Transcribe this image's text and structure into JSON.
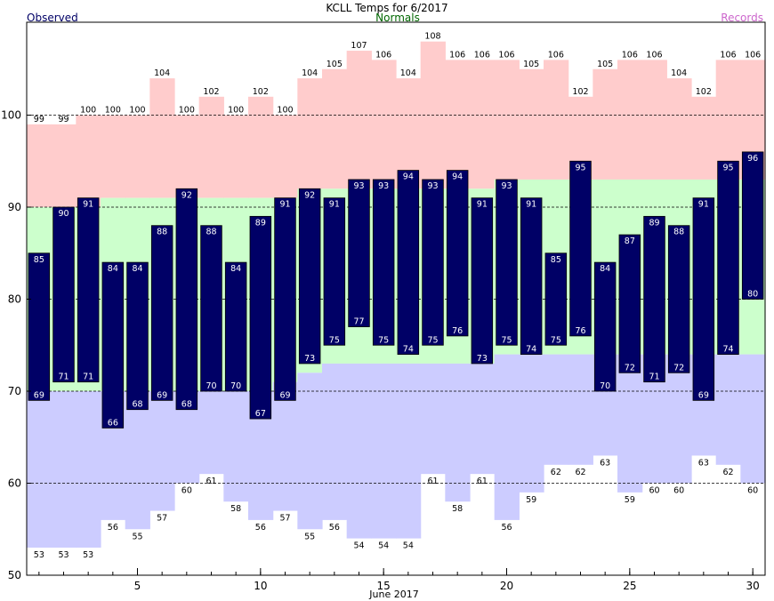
{
  "chart_data": {
    "type": "bar",
    "title": "KCLL Temps for 6/2017",
    "legend": {
      "observed": "Observed",
      "normals": "Normals",
      "records": "Records",
      "placement": "top"
    },
    "xlabel": "June 2017",
    "ylabel": "",
    "xlim": [
      1,
      30
    ],
    "ylim": [
      50,
      110
    ],
    "x_ticks": [
      "5",
      "10",
      "15",
      "20",
      "25",
      "30"
    ],
    "x_tick_values": [
      5,
      10,
      15,
      20,
      25,
      30
    ],
    "y_ticks": [
      "50",
      "60",
      "70",
      "80",
      "90",
      "100"
    ],
    "y_tick_values": [
      50,
      60,
      70,
      80,
      90,
      100
    ],
    "gridlines": [
      60,
      70,
      80,
      90,
      100
    ],
    "days": [
      1,
      2,
      3,
      4,
      5,
      6,
      7,
      8,
      9,
      10,
      11,
      12,
      13,
      14,
      15,
      16,
      17,
      18,
      19,
      20,
      21,
      22,
      23,
      24,
      25,
      26,
      27,
      28,
      29,
      30
    ],
    "series": [
      {
        "name": "Records",
        "key": "record_high",
        "values": [
          99,
          99,
          100,
          100,
          100,
          104,
          100,
          102,
          100,
          102,
          100,
          104,
          105,
          107,
          106,
          104,
          108,
          106,
          106,
          106,
          105,
          106,
          102,
          105,
          106,
          106,
          104,
          102,
          106,
          106
        ]
      },
      {
        "name": "Records",
        "key": "record_low",
        "values": [
          53,
          53,
          53,
          56,
          55,
          57,
          60,
          61,
          58,
          56,
          57,
          55,
          56,
          54,
          54,
          54,
          61,
          58,
          61,
          56,
          59,
          62,
          62,
          63,
          59,
          60,
          60,
          63,
          62,
          60
        ]
      },
      {
        "name": "Normals",
        "key": "normal_high",
        "values": [
          90,
          90,
          90,
          91,
          91,
          91,
          91,
          91,
          91,
          91,
          91,
          92,
          92,
          92,
          92,
          92,
          92,
          92,
          92,
          93,
          93,
          93,
          93,
          93,
          93,
          93,
          93,
          93,
          93,
          93
        ]
      },
      {
        "name": "Normals",
        "key": "normal_low",
        "values": [
          70,
          70,
          70,
          70,
          70,
          70,
          70,
          70,
          70,
          70,
          71,
          72,
          73,
          73,
          73,
          73,
          73,
          73,
          73,
          74,
          74,
          74,
          74,
          74,
          74,
          74,
          74,
          74,
          74,
          74
        ]
      },
      {
        "name": "Observed",
        "key": "observed_high",
        "values": [
          85,
          90,
          91,
          84,
          84,
          88,
          92,
          88,
          84,
          89,
          91,
          92,
          91,
          93,
          93,
          94,
          93,
          94,
          91,
          93,
          91,
          85,
          95,
          84,
          87,
          89,
          88,
          91,
          95,
          96
        ]
      },
      {
        "name": "Observed",
        "key": "observed_low",
        "values": [
          69,
          71,
          71,
          66,
          68,
          69,
          68,
          70,
          70,
          67,
          69,
          73,
          75,
          77,
          75,
          74,
          75,
          76,
          73,
          75,
          74,
          75,
          76,
          70,
          72,
          71,
          72,
          69,
          74,
          80
        ]
      }
    ],
    "colors": {
      "observed": "#000066",
      "observed_text": "#ffffff",
      "normal_band": "#ccffcc",
      "record_high_band": "#ffcccc",
      "record_low_band": "#ccccff",
      "legend_observed": "#000066",
      "legend_normals": "#006600",
      "legend_records": "#cc66cc",
      "grid": "#000000"
    }
  }
}
